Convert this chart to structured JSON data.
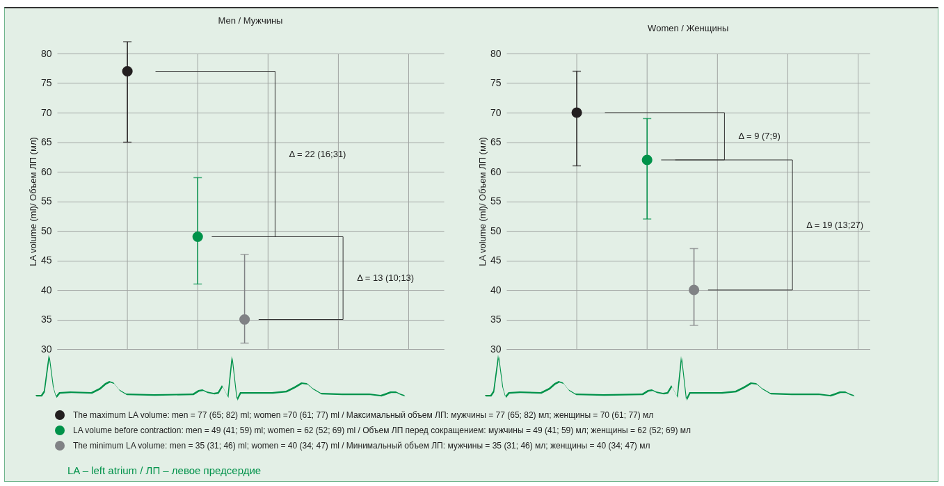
{
  "chart_data": [
    {
      "type": "scatter",
      "title": "Men / Мужчины",
      "ylabel": "LA volume (ml)/ Объем ЛП (мл)",
      "categories": [
        null,
        null,
        null,
        null,
        null,
        null,
        null,
        null,
        null,
        null,
        null,
        null,
        null,
        null,
        null,
        null
      ],
      "ylim": [
        30,
        80
      ],
      "yticks": [
        30,
        35,
        40,
        45,
        50,
        55,
        60,
        65,
        70,
        75,
        80
      ],
      "grid": true,
      "marker": "circle",
      "legend": "bottom",
      "series": [
        {
          "name": "The maximum LA volume: men = 77 (65; 82) ml; women =70 (61; 77) ml / Максимальный объем ЛП: мужчины = 77 (65; 82) мл; женщины = 70 (61; 77) мл",
          "color": "#231f20",
          "values": [
            null,
            null,
            77,
            null,
            null,
            null,
            null,
            null,
            null,
            null,
            null,
            null,
            null,
            null,
            null,
            null
          ],
          "errors": [
            null,
            null,
            [
              65,
              82
            ],
            null,
            null,
            null,
            null,
            null,
            null,
            null,
            null,
            null,
            null,
            null,
            null,
            null
          ]
        },
        {
          "name": "LA volume before contraction: men = 49 (41; 59) ml; women = 62 (52; 69) ml / Объем ЛП перед сокращением: мужчины = 49 (41; 59) мл; женщины = 62 (52; 69) мл",
          "color": "#00924a",
          "values": [
            null,
            null,
            null,
            null,
            null,
            49,
            null,
            null,
            null,
            null,
            null,
            null,
            null,
            null,
            null,
            null
          ],
          "errors": [
            null,
            null,
            null,
            null,
            null,
            [
              41,
              59
            ],
            null,
            null,
            null,
            null,
            null,
            null,
            null,
            null,
            null,
            null
          ]
        },
        {
          "name": "The minimum LA volume: men = 35 (31; 46) ml; women = 40 (34; 47) ml / Минимальный объем ЛП: мужчины = 35 (31; 46) мл; женщины = 40 (34; 47) мл",
          "color": "#808285",
          "values": [
            null,
            null,
            null,
            null,
            null,
            null,
            null,
            35,
            null,
            null,
            null,
            null,
            null,
            null,
            null,
            null
          ],
          "errors": [
            null,
            null,
            null,
            null,
            null,
            null,
            null,
            [
              31,
              46
            ],
            null,
            null,
            null,
            null,
            null,
            null,
            null,
            null
          ]
        }
      ],
      "annotations": [
        "Δ = 22 (16;31)",
        "Δ = 13 (10;13)",
        "LA – left atrium / ЛП – левое предсердие"
      ]
    },
    {
      "type": "scatter",
      "title": "Women / Женщины",
      "ylabel": "LA volume (ml)/ Объем ЛП (мл)",
      "categories": [
        null,
        null,
        null,
        null,
        null,
        null,
        null,
        null,
        null,
        null,
        null,
        null,
        null,
        null,
        null
      ],
      "ylim": [
        30,
        80
      ],
      "yticks": [
        30,
        35,
        40,
        45,
        50,
        55,
        60,
        65,
        70,
        75,
        80
      ],
      "grid": true,
      "marker": "circle",
      "series": [
        {
          "color": "#231f20",
          "values": [
            null,
            null,
            70,
            null,
            null,
            null,
            null,
            null,
            null,
            null,
            null,
            null,
            null,
            null,
            null
          ],
          "errors": [
            null,
            null,
            [
              61,
              77
            ],
            null,
            null,
            null,
            null,
            null,
            null,
            null,
            null,
            null,
            null,
            null,
            null
          ]
        },
        {
          "color": "#00924a",
          "values": [
            null,
            null,
            null,
            null,
            null,
            62,
            null,
            null,
            null,
            null,
            null,
            null,
            null,
            null,
            null
          ],
          "errors": [
            null,
            null,
            null,
            null,
            null,
            [
              52,
              69
            ],
            null,
            null,
            null,
            null,
            null,
            null,
            null,
            null,
            null
          ]
        },
        {
          "color": "#808285",
          "values": [
            null,
            null,
            null,
            null,
            null,
            null,
            null,
            40,
            null,
            null,
            null,
            null,
            null,
            null,
            null
          ],
          "errors": [
            null,
            null,
            null,
            null,
            null,
            null,
            null,
            [
              34,
              47
            ],
            null,
            null,
            null,
            null,
            null,
            null,
            null
          ]
        }
      ],
      "annotations": [
        "Δ = 9 (7;9)",
        "Δ = 19 (13;27)"
      ]
    }
  ]
}
